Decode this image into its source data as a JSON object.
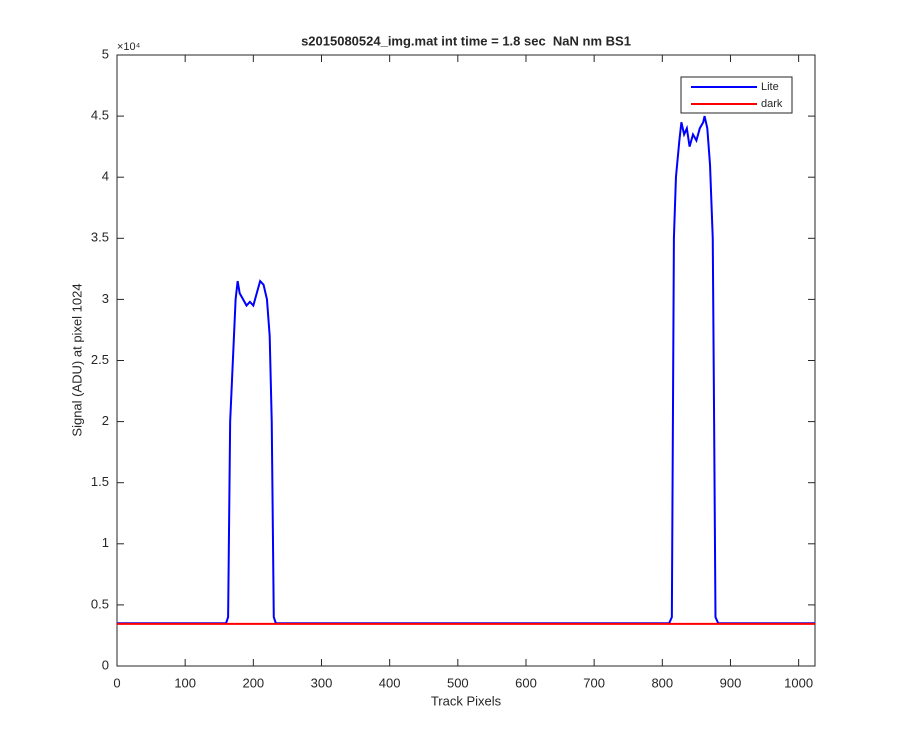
{
  "chart_data": {
    "type": "line",
    "title": "s2015080524_img.mat int time = 1.8 sec  NaN nm BS1",
    "xlabel": "Track Pixels",
    "ylabel": "Signal (ADU) at pixel 1024",
    "y_multiplier": "×10⁴",
    "x": [
      0,
      160,
      163,
      166,
      170,
      174,
      177,
      180,
      185,
      190,
      195,
      200,
      205,
      210,
      215,
      220,
      224,
      227,
      230,
      233,
      810,
      814,
      817,
      820,
      825,
      828,
      832,
      836,
      840,
      845,
      850,
      855,
      860,
      862,
      866,
      870,
      874,
      876,
      878,
      882,
      1024
    ],
    "series": [
      {
        "name": "Lite",
        "color": "#0000ff",
        "values": [
          3500,
          3500,
          4000,
          20000,
          25000,
          30000,
          31500,
          30500,
          30000,
          29500,
          29800,
          29500,
          30500,
          31500,
          31200,
          30000,
          27000,
          20000,
          4000,
          3500,
          3500,
          4000,
          35000,
          40000,
          43000,
          44500,
          43500,
          44000,
          42500,
          43500,
          43000,
          44000,
          44500,
          45000,
          44000,
          41000,
          35000,
          20000,
          4000,
          3500,
          3500
        ]
      },
      {
        "name": "dark",
        "color": "#ff0000",
        "values": [
          3450,
          3450,
          3450,
          3450,
          3450,
          3450,
          3450,
          3450,
          3450,
          3450,
          3450,
          3450,
          3450,
          3450,
          3450,
          3450,
          3450,
          3450,
          3450,
          3450,
          3450,
          3450,
          3450,
          3450,
          3450,
          3450,
          3450,
          3450,
          3450,
          3450,
          3450,
          3450,
          3450,
          3450,
          3450,
          3450,
          3450,
          3450,
          3450,
          3450,
          3450
        ]
      }
    ],
    "xlim": [
      0,
      1024
    ],
    "xticks": [
      0,
      100,
      200,
      300,
      400,
      500,
      600,
      700,
      800,
      900,
      1000
    ],
    "ylim": [
      0,
      50000
    ],
    "yticks": [
      {
        "value": 0,
        "label": "0"
      },
      {
        "value": 5000,
        "label": "0.5"
      },
      {
        "value": 10000,
        "label": "1"
      },
      {
        "value": 15000,
        "label": "1.5"
      },
      {
        "value": 20000,
        "label": "2"
      },
      {
        "value": 25000,
        "label": "2.5"
      },
      {
        "value": 30000,
        "label": "3"
      },
      {
        "value": 35000,
        "label": "3.5"
      },
      {
        "value": 40000,
        "label": "4"
      },
      {
        "value": 45000,
        "label": "4.5"
      },
      {
        "value": 50000,
        "label": "5"
      }
    ],
    "grid": false,
    "legend": "top-right"
  }
}
